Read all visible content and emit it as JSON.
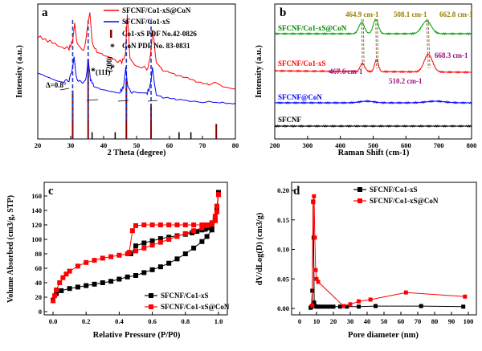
{
  "chart_data": [
    {
      "panel": "a",
      "type": "line",
      "xlabel": "2 Theta (degree)",
      "ylabel": "Intensity (a.u.)",
      "xlim": [
        20,
        80
      ],
      "xticks": [
        20,
        30,
        40,
        50,
        60,
        70,
        80
      ],
      "legend": [
        {
          "name": "SFCNF/Co1-xS@CoN",
          "color": "#ff0000",
          "style": "line"
        },
        {
          "name": "SFCNF/Co1-xS",
          "color": "#0000ff",
          "style": "line"
        },
        {
          "name": "Co1-xS PDF No.42-0826",
          "color": "#8b0000",
          "style": "bar"
        },
        {
          "name": "CoN PDF No. 83-0831",
          "color": "#000000",
          "style": "star"
        }
      ],
      "series": [
        {
          "name": "SFCNF/Co1-xS@CoN",
          "color": "#ff0000",
          "x": [
            20,
            23,
            26,
            28,
            29.5,
            30.5,
            31.2,
            32,
            34,
            35.2,
            35.8,
            36.5,
            38,
            40,
            42,
            44,
            45.5,
            46.6,
            47.2,
            48,
            50,
            52,
            53.5,
            54.3,
            54.9,
            56,
            58,
            60,
            62,
            64,
            66,
            68,
            70,
            72,
            74,
            76,
            78,
            80
          ],
          "y": [
            0.76,
            0.73,
            0.7,
            0.68,
            0.67,
            0.72,
            0.85,
            0.7,
            0.65,
            0.84,
            0.93,
            0.72,
            0.64,
            0.62,
            0.6,
            0.58,
            0.57,
            0.62,
            0.92,
            0.6,
            0.54,
            0.53,
            0.52,
            0.64,
            0.82,
            0.56,
            0.5,
            0.49,
            0.47,
            0.46,
            0.45,
            0.43,
            0.42,
            0.41,
            0.43,
            0.4,
            0.39,
            0.38
          ]
        },
        {
          "name": "SFCNF/Co1-xS",
          "color": "#0000ff",
          "x": [
            20,
            22,
            24,
            26,
            28,
            29.5,
            30.3,
            31,
            31.8,
            33,
            34.5,
            35.3,
            36,
            37,
            39,
            41,
            43,
            45,
            46,
            46.7,
            47.5,
            49,
            51,
            53,
            54,
            54.8,
            56,
            58,
            60,
            62,
            64,
            66,
            68,
            70,
            72,
            74,
            76,
            78,
            80
          ],
          "y": [
            0.5,
            0.48,
            0.46,
            0.44,
            0.43,
            0.43,
            0.5,
            0.6,
            0.45,
            0.42,
            0.43,
            0.58,
            0.44,
            0.4,
            0.38,
            0.37,
            0.36,
            0.35,
            0.38,
            0.52,
            0.37,
            0.34,
            0.33,
            0.33,
            0.38,
            0.52,
            0.33,
            0.31,
            0.31,
            0.3,
            0.3,
            0.29,
            0.29,
            0.28,
            0.29,
            0.28,
            0.28,
            0.27,
            0.27
          ]
        }
      ],
      "reference_bars_Co1-xS": {
        "x": [
          30.6,
          35.3,
          46.9,
          54.4,
          74.2
        ],
        "h": [
          0.58,
          0.95,
          0.72,
          0.42,
          0.18
        ]
      },
      "reference_bars_CoN": {
        "x": [
          36.5,
          43.5,
          62.9,
          66.5
        ],
        "h": [
          0.05,
          0.05,
          0.05,
          0.05
        ]
      },
      "dashed_peak_lines": [
        30.6,
        35.3,
        46.9,
        54.4
      ],
      "annotations": [
        "(111)",
        "(200)",
        "Δ=0.8°"
      ]
    },
    {
      "panel": "b",
      "type": "line",
      "xlabel": "Raman Shift (cm-1)",
      "ylabel": "Intensity (a.u.)",
      "xlim": [
        200,
        800
      ],
      "xticks": [
        200,
        300,
        400,
        500,
        600,
        700,
        800
      ],
      "series": [
        {
          "name": "SFCNF/Co1-xS@CoN",
          "color": "#00a000",
          "label": "SFCNF/Co1-xS@CoN"
        },
        {
          "name": "SFCNF/Co1-xS",
          "color": "#ff0000",
          "label": "SFCNF/Co1-xS"
        },
        {
          "name": "SFCNF@CoN",
          "color": "#0000ff",
          "label": "SFCNF@CoN"
        },
        {
          "name": "SFCNF",
          "color": "#000000",
          "label": "SFCNF"
        }
      ],
      "peaks_top": [
        464.9,
        508.1,
        662.8
      ],
      "peaks_red": [
        467.6,
        510.2,
        668.3
      ],
      "peak_labels_top": [
        "464.9 cm-1",
        "508.1 cm-1",
        "662.8 cm-1"
      ],
      "peak_labels_red": [
        "467.6 cm-1",
        "510.2 cm-1",
        "668.3 cm-1"
      ]
    },
    {
      "panel": "c",
      "type": "line",
      "xlabel": "Relative Pressure (P/P0)",
      "ylabel": "Volume Absorbed (cm3/g, STP)",
      "xlim": [
        0.0,
        1.0
      ],
      "ylim": [
        0,
        170
      ],
      "xticks": [
        0.0,
        0.2,
        0.4,
        0.6,
        0.8,
        1.0
      ],
      "yticks": [
        0,
        20,
        40,
        60,
        80,
        100,
        120,
        140,
        160
      ],
      "series": [
        {
          "name": "SFCNF/Co1-xS",
          "color": "#000000",
          "marker": "square",
          "adsorption": {
            "x": [
              0.0,
              0.02,
              0.05,
              0.1,
              0.15,
              0.2,
              0.25,
              0.3,
              0.35,
              0.4,
              0.45,
              0.5,
              0.55,
              0.6,
              0.65,
              0.7,
              0.75,
              0.8,
              0.85,
              0.9,
              0.93,
              0.96,
              0.98,
              0.99,
              1.0
            ],
            "y": [
              16,
              25,
              29,
              32,
              34,
              36,
              38,
              40,
              42,
              45,
              48,
              50,
              54,
              58,
              62,
              67,
              73,
              80,
              88,
              97,
              104,
              113,
              126,
              143,
              165
            ]
          },
          "desorption": {
            "x": [
              1.0,
              0.99,
              0.98,
              0.96,
              0.94,
              0.92,
              0.9,
              0.87,
              0.84,
              0.8,
              0.75,
              0.7,
              0.65,
              0.6,
              0.55,
              0.5,
              0.47
            ],
            "y": [
              165,
              142,
              128,
              119,
              116,
              114,
              113,
              111,
              109,
              107,
              105,
              103,
              101,
              98,
              95,
              91,
              80
            ]
          }
        },
        {
          "name": "SFCNF/Co1-xS@CoN",
          "color": "#ff0000",
          "marker": "square",
          "adsorption": {
            "x": [
              0.0,
              0.01,
              0.02,
              0.04,
              0.06,
              0.08,
              0.1,
              0.15,
              0.2,
              0.25,
              0.3,
              0.35,
              0.4,
              0.45,
              0.5,
              0.55,
              0.6,
              0.65,
              0.7,
              0.75,
              0.8,
              0.85,
              0.9,
              0.93,
              0.96,
              0.98,
              0.99,
              1.0
            ],
            "y": [
              15,
              22,
              30,
              40,
              47,
              52,
              56,
              63,
              68,
              71,
              74,
              76,
              78,
              80,
              84,
              88,
              92,
              96,
              100,
              104,
              108,
              112,
              116,
              119,
              123,
              132,
              146,
              162
            ]
          },
          "desorption": {
            "x": [
              1.0,
              0.99,
              0.98,
              0.96,
              0.94,
              0.92,
              0.9,
              0.85,
              0.8,
              0.75,
              0.7,
              0.65,
              0.6,
              0.55,
              0.5,
              0.48,
              0.46
            ],
            "y": [
              162,
              138,
              126,
              121,
              120,
              120,
              120,
              120,
              120,
              120,
              120,
              120,
              120,
              120,
              119,
              112,
              82
            ]
          }
        }
      ]
    },
    {
      "panel": "d",
      "type": "line",
      "xlabel": "Pore diameter (nm)",
      "ylabel": "dV/dLog(D) (cm3/g)",
      "xlim": [
        0,
        100
      ],
      "ylim": [
        0,
        0.2
      ],
      "xticks": [
        0,
        10,
        20,
        30,
        40,
        50,
        60,
        70,
        80,
        90,
        100
      ],
      "yticks": [
        0.0,
        0.05,
        0.1,
        0.15,
        0.2
      ],
      "series": [
        {
          "name": "SFCNF/Co1-xS",
          "color": "#000000",
          "marker": "square",
          "x": [
            6.5,
            7,
            7.5,
            8,
            8.3,
            8.6,
            9,
            10,
            11,
            12,
            14,
            16,
            18,
            20,
            24,
            28,
            35,
            45,
            72,
            97
          ],
          "y": [
            0.001,
            0.003,
            0.03,
            0.181,
            0.12,
            0.01,
            0.004,
            0.003,
            0.003,
            0.003,
            0.003,
            0.003,
            0.003,
            0.003,
            0.003,
            0.003,
            0.003,
            0.004,
            0.004,
            0.003
          ]
        },
        {
          "name": "SFCNF/Co1-xS@CoN",
          "color": "#ff0000",
          "marker": "square",
          "x": [
            7.5,
            8,
            8.5,
            9,
            9.5,
            10,
            11,
            26,
            30,
            35,
            42,
            63,
            98
          ],
          "y": [
            0.005,
            0.18,
            0.19,
            0.12,
            0.065,
            0.05,
            0.045,
            0.004,
            0.007,
            0.012,
            0.015,
            0.027,
            0.02
          ]
        }
      ]
    }
  ],
  "panels": {
    "a": {
      "letter": "a"
    },
    "b": {
      "letter": "b"
    },
    "c": {
      "letter": "c"
    },
    "d": {
      "letter": "d"
    }
  }
}
